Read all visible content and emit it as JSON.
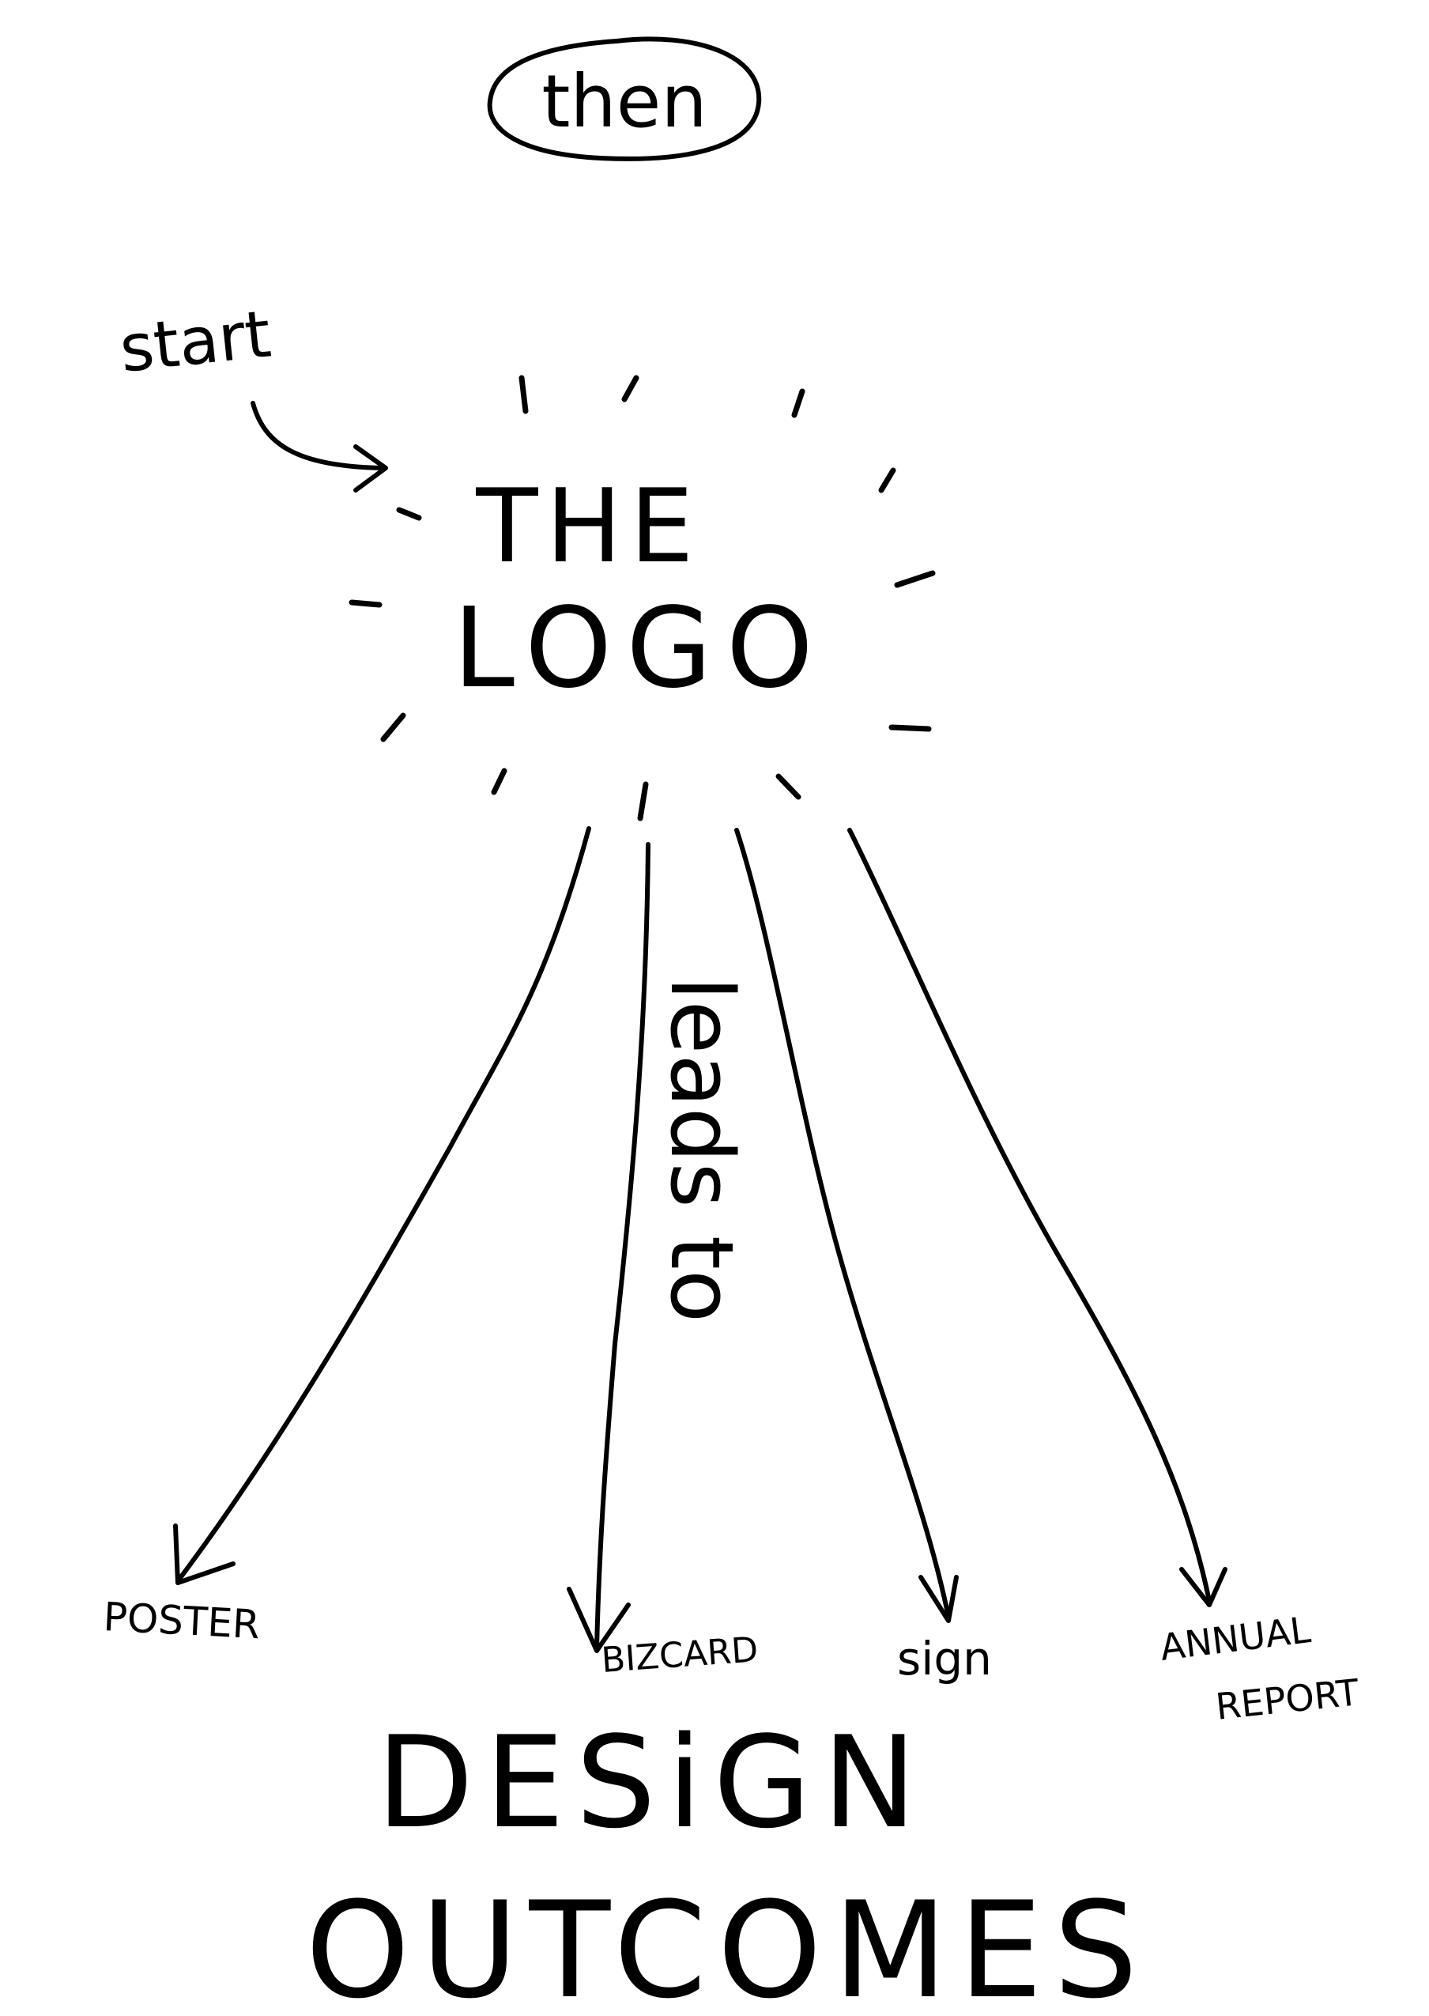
{
  "ink_color": "#000000",
  "paper_color": "#ffffff",
  "top_bubble": {
    "label": "then"
  },
  "start_note": {
    "label": "start"
  },
  "center": {
    "line1": "THE",
    "line2": "LOGO"
  },
  "edge_label": "leads to",
  "outcomes": [
    {
      "id": "poster",
      "label": "POSTER"
    },
    {
      "id": "bizcard",
      "label": "BIZCARD"
    },
    {
      "id": "sign",
      "label": "sign"
    },
    {
      "id": "annual-report",
      "line1": "ANNUAL",
      "line2": "REPORT"
    }
  ],
  "footer": {
    "line1": "DESiGN",
    "line2": "OUTCOMES"
  }
}
